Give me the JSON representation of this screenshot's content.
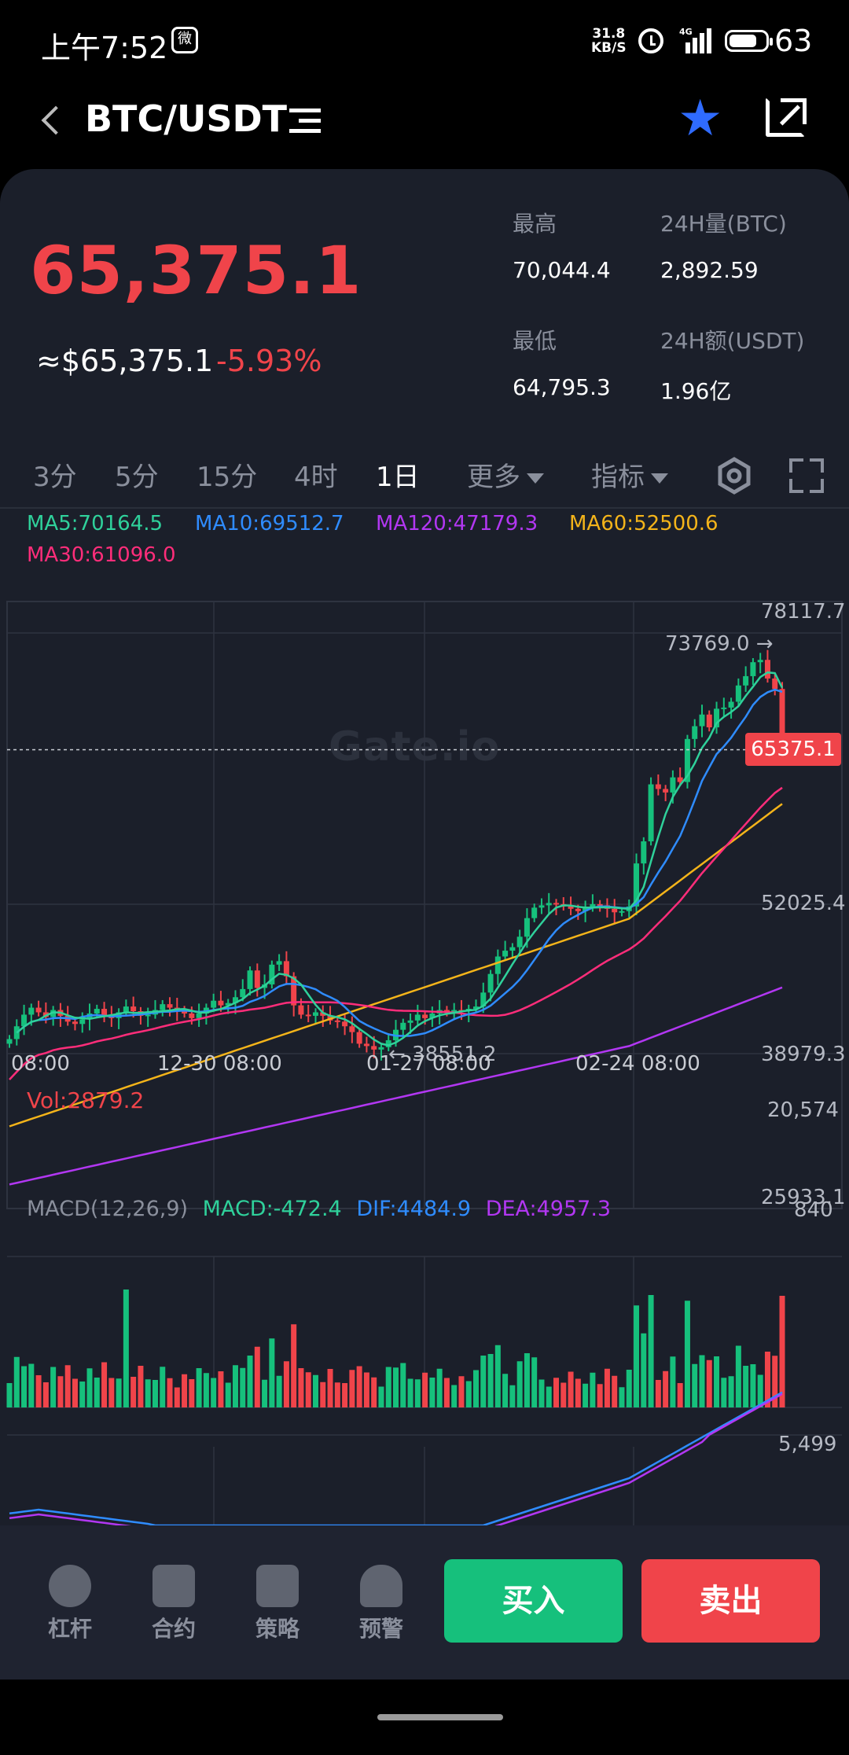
{
  "status_bar": {
    "time": "上午7:52",
    "speed_value": "31.8",
    "speed_unit": "KB/S",
    "network": "4G",
    "battery": "63"
  },
  "header": {
    "pair": "BTC/USDT"
  },
  "ticker": {
    "last_price": "65,375.1",
    "approx_usd": "≈$65,375.1",
    "change_pct": "-5.93%",
    "high_label": "最高",
    "high_value": "70,044.4",
    "low_label": "最低",
    "low_value": "64,795.3",
    "vol_label": "24H量(BTC)",
    "vol_value": "2,892.59",
    "amt_label": "24H额(USDT)",
    "amt_value": "1.96亿"
  },
  "timeframes": [
    {
      "label": "3分",
      "active": false
    },
    {
      "label": "5分",
      "active": false
    },
    {
      "label": "15分",
      "active": false
    },
    {
      "label": "4时",
      "active": false
    },
    {
      "label": "1日",
      "active": true
    }
  ],
  "more_label": "更多",
  "indicator_label": "指标",
  "ma_legend": {
    "ma5": "MA5:70164.5",
    "ma10": "MA10:69512.7",
    "ma120": "MA120:47179.3",
    "ma60": "MA60:52500.6",
    "ma30": "MA30:61096.0"
  },
  "watermark": "Gate.io",
  "price_axis": [
    "78117.7",
    "52025.4",
    "38979.3",
    "25933.1"
  ],
  "current_price_tag": "65375.1",
  "high_marker": "73769.0 →",
  "low_marker": "← 38551.2",
  "time_axis": [
    "08:00",
    "12-30 08:00",
    "01-27 08:00",
    "02-24 08:00"
  ],
  "volume": {
    "label": "Vol:2879.2",
    "max": "20,574",
    "min": "840"
  },
  "macd": {
    "params": "MACD(12,26,9)",
    "macd": "MACD:-472.4",
    "dif": "DIF:4484.9",
    "dea": "DEA:4957.3",
    "max": "5,499"
  },
  "bottom_bar": {
    "leverage": "杠杆",
    "contract": "合约",
    "strategy": "策略",
    "alert": "预警",
    "buy": "买入",
    "sell": "卖出"
  },
  "colors": {
    "up": "#16c07c",
    "down": "#f0444a",
    "ma5": "#2fd19b",
    "ma10": "#2f8cff",
    "ma30": "#ff2d7a",
    "ma60": "#f4b41a",
    "ma120": "#b237f2",
    "background": "#1b1f2a"
  },
  "chart_data": {
    "type": "candlestick",
    "title": "BTC/USDT 1日",
    "ylim": [
      25933.1,
      78117.7
    ],
    "x_ticks": [
      "08:00",
      "12-30 08:00",
      "01-27 08:00",
      "02-24 08:00"
    ],
    "period_high": 73769.0,
    "period_low": 38551.2,
    "last_close": 65375.1,
    "closes": [
      40500,
      41600,
      42600,
      43200,
      42800,
      42400,
      43000,
      42500,
      42000,
      41800,
      42200,
      42700,
      43100,
      42500,
      42300,
      42800,
      43300,
      42900,
      42500,
      42600,
      43000,
      43500,
      43200,
      43000,
      42700,
      42300,
      42700,
      43200,
      43800,
      43400,
      43600,
      44100,
      44800,
      46400,
      44900,
      45200,
      46900,
      47200,
      45900,
      43400,
      42600,
      42500,
      42800,
      42500,
      42100,
      42000,
      41600,
      41100,
      40100,
      39900,
      39600,
      39800,
      40400,
      41300,
      41900,
      42100,
      42600,
      42300,
      42700,
      43000,
      42800,
      43000,
      42900,
      43100,
      43300,
      44500,
      46100,
      47600,
      48100,
      48400,
      49300,
      50900,
      51800,
      52000,
      52200,
      52100,
      51900,
      51700,
      51500,
      51800,
      52100,
      52000,
      51700,
      51400,
      51500,
      51900,
      55600,
      57500,
      62400,
      62000,
      61700,
      63000,
      62600,
      66300,
      67400,
      68400,
      67300,
      68900,
      69000,
      69500,
      70900,
      71700,
      72900,
      73100,
      71500,
      70600,
      65375
    ]
  }
}
